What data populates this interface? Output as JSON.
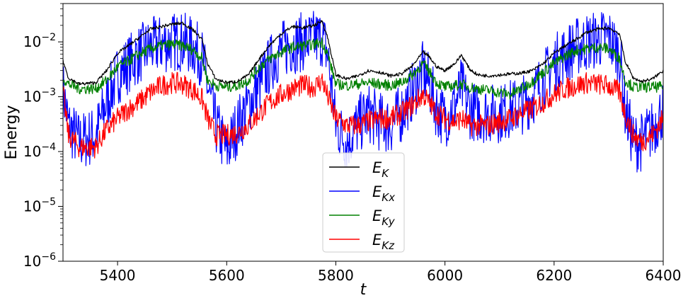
{
  "chart_data": {
    "type": "line",
    "xlabel": "t",
    "ylabel": "Energy",
    "xlim": [
      5300,
      6400
    ],
    "ylim": [
      1e-06,
      0.05
    ],
    "yscale": "log",
    "x_ticks": [
      {
        "value": 5400,
        "label": "5400"
      },
      {
        "value": 5600,
        "label": "5600"
      },
      {
        "value": 5800,
        "label": "5800"
      },
      {
        "value": 6000,
        "label": "6000"
      },
      {
        "value": 6200,
        "label": "6200"
      },
      {
        "value": 6400,
        "label": "6400"
      }
    ],
    "y_ticks": [
      {
        "value": 1e-06,
        "base": "10",
        "exp": "−6"
      },
      {
        "value": 1e-05,
        "base": "10",
        "exp": "−5"
      },
      {
        "value": 0.0001,
        "base": "10",
        "exp": "−4"
      },
      {
        "value": 0.001,
        "base": "10",
        "exp": "−3"
      },
      {
        "value": 0.01,
        "base": "10",
        "exp": "−2"
      }
    ],
    "grid": false,
    "legend_position": "lower-center",
    "series": [
      {
        "name": "E",
        "sub": "K",
        "color": "#000000",
        "noise": 0.03,
        "x": [
          5300,
          5310,
          5330,
          5360,
          5380,
          5400,
          5420,
          5440,
          5460,
          5480,
          5500,
          5520,
          5540,
          5555,
          5565,
          5580,
          5600,
          5620,
          5640,
          5660,
          5680,
          5700,
          5720,
          5740,
          5760,
          5775,
          5785,
          5800,
          5820,
          5840,
          5860,
          5880,
          5900,
          5920,
          5940,
          5960,
          5970,
          5985,
          6000,
          6020,
          6030,
          6045,
          6060,
          6080,
          6100,
          6120,
          6140,
          6160,
          6180,
          6200,
          6220,
          6240,
          6260,
          6280,
          6300,
          6320,
          6330,
          6345,
          6360,
          6380,
          6400
        ],
        "y": [
          0.0045,
          0.0022,
          0.0017,
          0.0018,
          0.003,
          0.0062,
          0.0085,
          0.012,
          0.017,
          0.019,
          0.021,
          0.022,
          0.016,
          0.011,
          0.004,
          0.0021,
          0.0018,
          0.0019,
          0.0025,
          0.005,
          0.009,
          0.014,
          0.019,
          0.018,
          0.02,
          0.024,
          0.012,
          0.0025,
          0.0021,
          0.0024,
          0.003,
          0.0028,
          0.0024,
          0.0026,
          0.0036,
          0.0065,
          0.0055,
          0.0035,
          0.003,
          0.0042,
          0.0058,
          0.0032,
          0.0025,
          0.0024,
          0.0025,
          0.0026,
          0.0027,
          0.003,
          0.004,
          0.0062,
          0.0085,
          0.011,
          0.015,
          0.017,
          0.018,
          0.014,
          0.0045,
          0.0022,
          0.0019,
          0.0021,
          0.003
        ]
      },
      {
        "name": "E",
        "sub": "Kx",
        "color": "#0000ff",
        "noise": 0.55,
        "x": [
          5300,
          5310,
          5330,
          5360,
          5380,
          5400,
          5420,
          5440,
          5460,
          5480,
          5500,
          5520,
          5540,
          5555,
          5565,
          5580,
          5600,
          5620,
          5640,
          5660,
          5680,
          5700,
          5720,
          5740,
          5760,
          5775,
          5785,
          5800,
          5820,
          5840,
          5860,
          5880,
          5900,
          5920,
          5940,
          5960,
          5970,
          5985,
          6000,
          6020,
          6030,
          6045,
          6060,
          6080,
          6100,
          6120,
          6140,
          6160,
          6180,
          6200,
          6220,
          6240,
          6260,
          6280,
          6300,
          6320,
          6330,
          6345,
          6360,
          6380,
          6400
        ],
        "y": [
          0.0014,
          0.0003,
          0.00015,
          0.0002,
          0.0008,
          0.0025,
          0.004,
          0.006,
          0.008,
          0.009,
          0.01,
          0.01,
          0.008,
          0.005,
          0.0015,
          0.0003,
          0.0001,
          0.0003,
          0.0007,
          0.0016,
          0.004,
          0.007,
          0.009,
          0.01,
          0.011,
          0.012,
          0.006,
          0.0003,
          0.00015,
          0.0003,
          0.0005,
          0.00035,
          0.0003,
          0.0005,
          0.0012,
          0.003,
          0.0018,
          0.0006,
          0.0004,
          0.0008,
          0.0015,
          0.0006,
          0.0005,
          0.0005,
          0.0005,
          0.0006,
          0.0007,
          0.001,
          0.002,
          0.004,
          0.006,
          0.008,
          0.01,
          0.011,
          0.012,
          0.006,
          0.0006,
          0.00015,
          0.00015,
          0.00025,
          0.0006
        ]
      },
      {
        "name": "E",
        "sub": "Ky",
        "color": "#008000",
        "noise": 0.1,
        "x": [
          5300,
          5310,
          5330,
          5360,
          5380,
          5400,
          5420,
          5440,
          5460,
          5480,
          5500,
          5520,
          5540,
          5555,
          5565,
          5580,
          5600,
          5620,
          5640,
          5660,
          5680,
          5700,
          5720,
          5740,
          5760,
          5775,
          5785,
          5800,
          5820,
          5840,
          5860,
          5880,
          5900,
          5920,
          5940,
          5960,
          5970,
          5985,
          6000,
          6020,
          6030,
          6045,
          6060,
          6080,
          6100,
          6120,
          6140,
          6160,
          6180,
          6200,
          6220,
          6240,
          6260,
          6280,
          6300,
          6320,
          6330,
          6345,
          6360,
          6380,
          6400
        ],
        "y": [
          0.0022,
          0.0017,
          0.0014,
          0.0014,
          0.002,
          0.0035,
          0.0045,
          0.006,
          0.0075,
          0.0085,
          0.009,
          0.0085,
          0.007,
          0.005,
          0.002,
          0.0016,
          0.0015,
          0.0016,
          0.002,
          0.0035,
          0.005,
          0.0065,
          0.008,
          0.0085,
          0.009,
          0.01,
          0.006,
          0.0017,
          0.0016,
          0.0017,
          0.0018,
          0.0017,
          0.0016,
          0.0018,
          0.0025,
          0.004,
          0.003,
          0.0018,
          0.0015,
          0.0016,
          0.0017,
          0.0015,
          0.0014,
          0.0013,
          0.0012,
          0.0011,
          0.0014,
          0.0019,
          0.0028,
          0.004,
          0.0055,
          0.007,
          0.0075,
          0.008,
          0.0075,
          0.005,
          0.002,
          0.0015,
          0.0015,
          0.0015,
          0.0015
        ]
      },
      {
        "name": "E",
        "sub": "Kz",
        "color": "#ff0000",
        "noise": 0.2,
        "x": [
          5300,
          5310,
          5330,
          5360,
          5380,
          5400,
          5420,
          5440,
          5460,
          5480,
          5500,
          5520,
          5540,
          5555,
          5565,
          5580,
          5600,
          5620,
          5640,
          5660,
          5680,
          5700,
          5720,
          5740,
          5760,
          5775,
          5785,
          5800,
          5820,
          5840,
          5860,
          5880,
          5900,
          5920,
          5940,
          5960,
          5970,
          5985,
          6000,
          6020,
          6030,
          6045,
          6060,
          6080,
          6100,
          6120,
          6140,
          6160,
          6180,
          6200,
          6220,
          6240,
          6260,
          6280,
          6300,
          6320,
          6330,
          6345,
          6360,
          6380,
          6400
        ],
        "y": [
          0.0012,
          0.0002,
          0.00012,
          0.00012,
          0.00025,
          0.0004,
          0.0006,
          0.0008,
          0.0012,
          0.0016,
          0.0018,
          0.0017,
          0.0013,
          0.0009,
          0.0004,
          0.0002,
          0.0002,
          0.00022,
          0.0003,
          0.0005,
          0.0008,
          0.0011,
          0.0014,
          0.0016,
          0.0015,
          0.002,
          0.001,
          0.0004,
          0.0003,
          0.0003,
          0.00035,
          0.0004,
          0.0004,
          0.0005,
          0.0007,
          0.0011,
          0.0008,
          0.0005,
          0.0004,
          0.00035,
          0.0004,
          0.0003,
          0.0003,
          0.0003,
          0.00035,
          0.0004,
          0.0005,
          0.0006,
          0.0008,
          0.0011,
          0.0014,
          0.0016,
          0.0018,
          0.0017,
          0.0016,
          0.0012,
          0.0005,
          0.0002,
          0.00015,
          0.0002,
          0.0004
        ]
      }
    ]
  }
}
